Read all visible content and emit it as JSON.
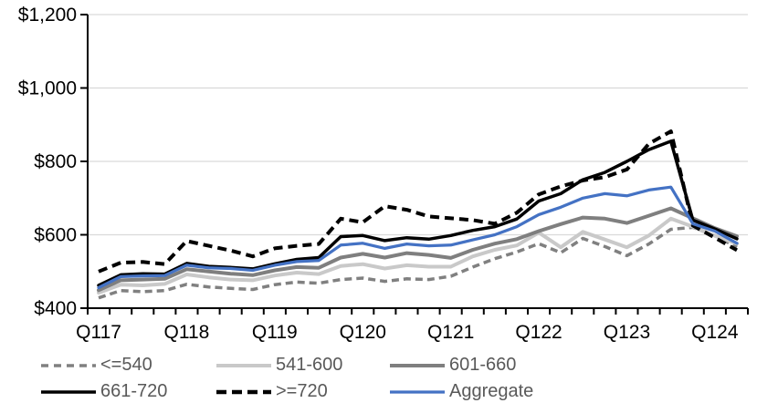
{
  "chart_data": {
    "type": "line",
    "title": "",
    "xlabel": "",
    "ylabel": "",
    "ylim": [
      400,
      1200
    ],
    "grid": true,
    "legend_position": "bottom",
    "y_ticks": [
      {
        "value": 400,
        "label": "$400"
      },
      {
        "value": 600,
        "label": "$600"
      },
      {
        "value": 800,
        "label": "$800"
      },
      {
        "value": 1000,
        "label": "$1,000"
      },
      {
        "value": 1200,
        "label": "$1,200"
      }
    ],
    "categories": [
      "Q117",
      "Q217",
      "Q317",
      "Q417",
      "Q118",
      "Q218",
      "Q318",
      "Q418",
      "Q119",
      "Q219",
      "Q319",
      "Q419",
      "Q120",
      "Q220",
      "Q320",
      "Q420",
      "Q121",
      "Q221",
      "Q321",
      "Q421",
      "Q122",
      "Q222",
      "Q322",
      "Q422",
      "Q123",
      "Q223",
      "Q323",
      "Q423",
      "Q124",
      "Q224"
    ],
    "x_labeled_categories": [
      "Q117",
      "Q118",
      "Q119",
      "Q120",
      "Q121",
      "Q122",
      "Q123",
      "Q124"
    ],
    "series": [
      {
        "name": "<=540",
        "color": "#808080",
        "dash": "8 5",
        "width": 3.5,
        "values": [
          428,
          448,
          445,
          448,
          465,
          458,
          454,
          451,
          464,
          471,
          468,
          478,
          482,
          473,
          480,
          478,
          487,
          512,
          535,
          553,
          576,
          551,
          590,
          568,
          543,
          575,
          615,
          620,
          598,
          566
        ]
      },
      {
        "name": "541-600",
        "color": "#c9c9c9",
        "dash": null,
        "width": 4,
        "values": [
          442,
          464,
          462,
          466,
          492,
          484,
          478,
          476,
          489,
          497,
          493,
          515,
          520,
          508,
          517,
          513,
          513,
          541,
          559,
          571,
          606,
          566,
          608,
          587,
          566,
          598,
          644,
          622,
          597,
          576
        ]
      },
      {
        "name": "601-660",
        "color": "#7f7f7f",
        "dash": null,
        "width": 4,
        "values": [
          449,
          476,
          478,
          480,
          506,
          500,
          494,
          490,
          503,
          512,
          510,
          538,
          548,
          538,
          550,
          545,
          537,
          559,
          576,
          588,
          610,
          629,
          647,
          644,
          632,
          652,
          672,
          645,
          618,
          596
        ]
      },
      {
        "name": "661-720",
        "color": "#000000",
        "dash": null,
        "width": 3.5,
        "values": [
          462,
          491,
          494,
          493,
          522,
          514,
          511,
          507,
          521,
          533,
          538,
          595,
          598,
          584,
          592,
          588,
          598,
          612,
          622,
          643,
          692,
          712,
          750,
          770,
          800,
          832,
          855,
          640,
          616,
          589
        ]
      },
      {
        "name": ">=720",
        "color": "#000000",
        "dash": "10 6",
        "width": 4,
        "values": [
          500,
          524,
          526,
          520,
          583,
          570,
          557,
          541,
          563,
          570,
          575,
          644,
          634,
          678,
          668,
          650,
          645,
          640,
          630,
          660,
          710,
          732,
          748,
          757,
          778,
          848,
          882,
          625,
          592,
          558
        ]
      },
      {
        "name": "Aggregate",
        "color": "#4472c4",
        "dash": null,
        "width": 3.25,
        "values": [
          456,
          486,
          488,
          489,
          517,
          510,
          508,
          503,
          517,
          527,
          530,
          572,
          577,
          563,
          575,
          570,
          572,
          586,
          600,
          622,
          655,
          675,
          700,
          712,
          706,
          722,
          730,
          630,
          610,
          577
        ]
      }
    ],
    "legend": [
      {
        "label": "<=540",
        "color": "#808080",
        "dash": "8 6",
        "width": 3.5
      },
      {
        "label": "541-600",
        "color": "#c9c9c9",
        "dash": null,
        "width": 4
      },
      {
        "label": "601-660",
        "color": "#7f7f7f",
        "dash": null,
        "width": 4
      },
      {
        "label": "661-720",
        "color": "#000000",
        "dash": null,
        "width": 3.5
      },
      {
        "label": ">=720",
        "color": "#000000",
        "dash": "11 6",
        "width": 4.5
      },
      {
        "label": "Aggregate",
        "color": "#4472c4",
        "dash": null,
        "width": 3.25
      }
    ]
  },
  "colors": {
    "background": "#ffffff",
    "gridline": "#d9d9d9",
    "axis": "#000000",
    "tick_label": "#000000",
    "legend_text": "#595959"
  }
}
